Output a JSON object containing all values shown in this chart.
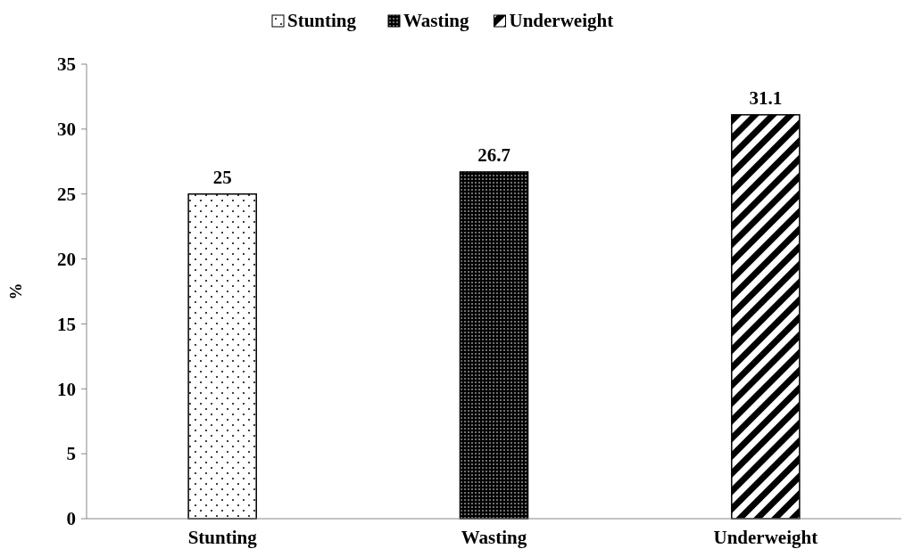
{
  "chart_data": {
    "type": "bar",
    "ylabel": "%",
    "categories": [
      "Stunting",
      "Wasting",
      "Underweight"
    ],
    "series": [
      {
        "name": "Stunting",
        "color": "#000000",
        "values": [
          25,
          null,
          null
        ]
      },
      {
        "name": "Wasting",
        "color": "#000000",
        "values": [
          null,
          26.7,
          null
        ]
      },
      {
        "name": "Underweight",
        "color": "#000000",
        "values": [
          null,
          null,
          31.1
        ]
      }
    ],
    "ylim": [
      0,
      35
    ],
    "yticks": [
      0,
      5,
      10,
      15,
      20,
      25,
      30,
      35
    ],
    "grid": false,
    "legend": "top",
    "data_labels": true
  }
}
